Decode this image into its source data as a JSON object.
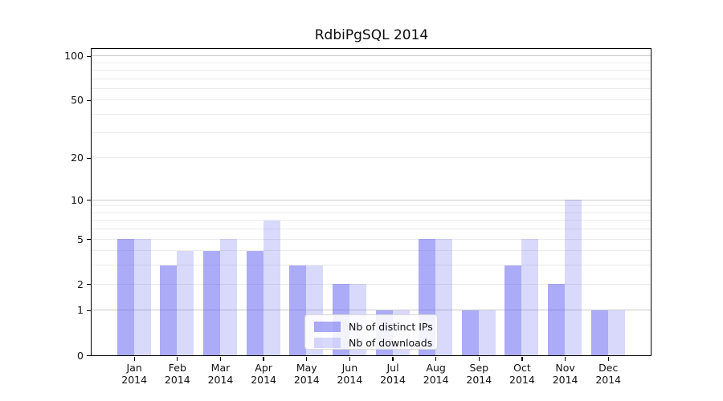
{
  "chart_data": {
    "type": "bar",
    "title": "RdbiPgSQL 2014",
    "categories": [
      "Jan 2014",
      "Feb 2014",
      "Mar 2014",
      "Apr 2014",
      "May 2014",
      "Jun 2014",
      "Jul 2014",
      "Aug 2014",
      "Sep 2014",
      "Oct 2014",
      "Nov 2014",
      "Dec 2014"
    ],
    "series": [
      {
        "name": "Nb of distinct IPs",
        "color": "#5a5af082",
        "values": [
          5,
          3,
          4,
          4,
          3,
          2,
          1,
          5,
          1,
          3,
          2,
          1
        ]
      },
      {
        "name": "Nb of downloads",
        "color": "#5a5af03b",
        "values": [
          5,
          4,
          5,
          7,
          3,
          2,
          1,
          5,
          1,
          5,
          10,
          1
        ]
      }
    ],
    "yscale": "log10(1+x)",
    "ylim": [
      0,
      112
    ],
    "ytick_values": [
      0,
      1,
      2,
      5,
      10,
      20,
      50,
      100
    ],
    "ytick_labels": [
      "0",
      "1",
      "2",
      "5",
      "10",
      "20",
      "50",
      "100"
    ],
    "grid_major_values": [
      1,
      10,
      100
    ],
    "grid_minor_values": [
      2,
      3,
      4,
      5,
      6,
      7,
      8,
      9,
      20,
      30,
      40,
      50,
      60,
      70,
      80,
      90
    ],
    "legend_position": "lower center",
    "grid": "on"
  },
  "colors": {
    "bar_distinct_ips_rendered": "#a9a9f7",
    "bar_downloads_rendered": "#d8d8fa",
    "grid_major": "#c9c9c9",
    "grid_minor": "#ebebeb",
    "axis": "#000000",
    "background": "#ffffff"
  }
}
